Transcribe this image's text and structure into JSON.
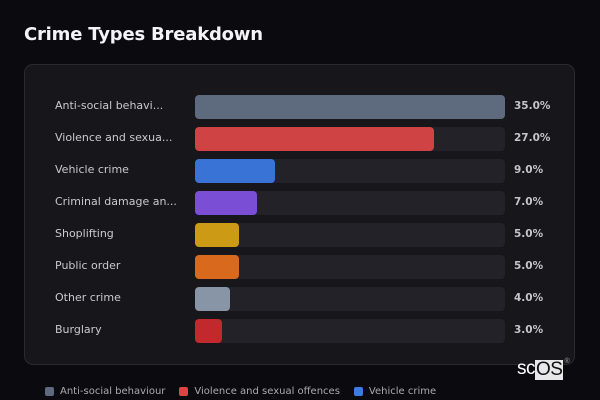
{
  "header": {
    "title": "Crime Types Breakdown"
  },
  "chart_data": {
    "type": "bar",
    "orientation": "horizontal",
    "title": "Crime Types Breakdown",
    "xlabel": "",
    "ylabel": "",
    "xlim": [
      0,
      35
    ],
    "grid": false,
    "legend_position": "bottom",
    "categories": [
      "Anti-social behaviour",
      "Violence and sexual offences",
      "Vehicle crime",
      "Criminal damage and arson",
      "Shoplifting",
      "Public order",
      "Other crime",
      "Burglary"
    ],
    "display_labels": [
      "Anti-social behavi...",
      "Violence and sexua...",
      "Vehicle crime",
      "Criminal damage an...",
      "Shoplifting",
      "Public order",
      "Other crime",
      "Burglary"
    ],
    "values": [
      35.0,
      27.0,
      9.0,
      7.0,
      5.0,
      5.0,
      4.0,
      3.0
    ],
    "value_labels": [
      "35.0%",
      "27.0%",
      "9.0%",
      "7.0%",
      "5.0%",
      "5.0%",
      "4.0%",
      "3.0%"
    ],
    "colors": [
      "#5e6a7e",
      "#d04345",
      "#3a73d6",
      "#7a4fd6",
      "#cc9a14",
      "#d96a1d",
      "#8895a6",
      "#c2292c"
    ]
  },
  "legend": [
    {
      "label": "Anti-social behaviour",
      "color": "#5e6a7e"
    },
    {
      "label": "Violence and sexual offences",
      "color": "#e04245"
    },
    {
      "label": "Vehicle crime",
      "color": "#3a7be6"
    }
  ],
  "watermark": {
    "text_sc": "sc",
    "text_os": "OS",
    "reg": "®"
  }
}
